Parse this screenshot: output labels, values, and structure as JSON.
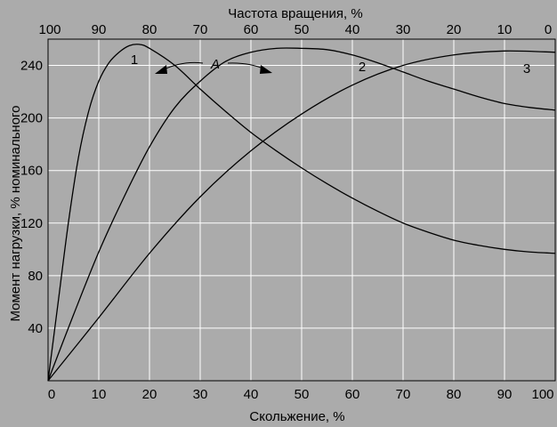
{
  "chart_data": {
    "type": "line",
    "title": "",
    "xlabel": "Скольжение, %",
    "ylabel": "Момент нагрузки, % номинального",
    "x2label": "Частота вращения, %",
    "xlim": [
      0,
      100
    ],
    "ylim": [
      0,
      260
    ],
    "grid": true,
    "xticks": [
      0,
      10,
      20,
      30,
      40,
      50,
      60,
      70,
      80,
      90,
      100
    ],
    "x2ticks": [
      100,
      90,
      80,
      70,
      60,
      50,
      40,
      30,
      20,
      10,
      0
    ],
    "yticks": [
      40,
      80,
      120,
      160,
      200,
      240
    ],
    "series": [
      {
        "name": "1",
        "x": [
          0,
          2,
          4,
          6,
          8,
          10,
          12,
          14,
          16,
          18,
          20,
          25,
          30,
          35,
          40,
          45,
          50,
          55,
          60,
          65,
          70,
          75,
          80,
          85,
          90,
          95,
          100
        ],
        "y": [
          0,
          60,
          120,
          170,
          205,
          228,
          242,
          250,
          255,
          256,
          253,
          240,
          222,
          205,
          189,
          175,
          162,
          150,
          139,
          129,
          120,
          113,
          107,
          103,
          100,
          98,
          97
        ]
      },
      {
        "name": "2",
        "x": [
          0,
          5,
          10,
          15,
          20,
          25,
          30,
          35,
          40,
          45,
          50,
          55,
          60,
          65,
          70,
          75,
          80,
          85,
          90,
          95,
          100
        ],
        "y": [
          0,
          50,
          98,
          140,
          178,
          208,
          228,
          243,
          250,
          253,
          253,
          252,
          248,
          242,
          235,
          228,
          222,
          216,
          211,
          208,
          206
        ]
      },
      {
        "name": "3",
        "x": [
          0,
          10,
          20,
          30,
          40,
          50,
          60,
          70,
          80,
          90,
          100
        ],
        "y": [
          0,
          48,
          97,
          140,
          175,
          203,
          225,
          240,
          248,
          251,
          250
        ]
      }
    ],
    "annotation": {
      "text": "A",
      "targets": [
        "1",
        "2"
      ]
    }
  }
}
